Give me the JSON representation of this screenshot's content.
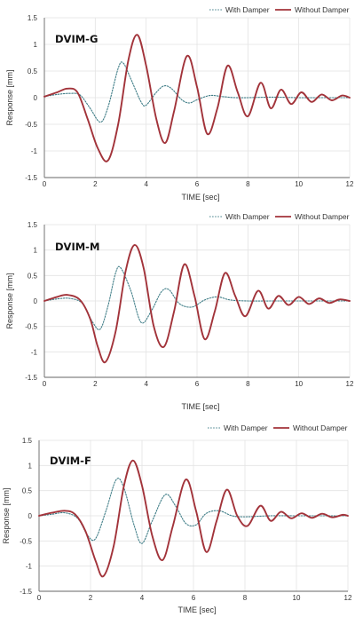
{
  "legend": {
    "with_damper": "With Damper",
    "without_damper": "Without Damper"
  },
  "colors": {
    "with_damper": "#3f7d87",
    "without_damper": "#a2333a",
    "grid": "#e3e3e3",
    "axis": "#666666"
  },
  "chart_data": [
    {
      "type": "line",
      "title": "DVIM-G",
      "xlabel": "TIME [sec]",
      "ylabel": "Response [mm]",
      "xlim": [
        0,
        12
      ],
      "ylim": [
        -1.5,
        1.5
      ],
      "xticks": [
        "0",
        "2",
        "4",
        "6",
        "8",
        "10",
        "12"
      ],
      "yticks": [
        "1.5",
        "1",
        "0.5",
        "0",
        "-0.5",
        "-1",
        "-1.5"
      ],
      "grid": true,
      "legend_position": "top-right",
      "series": [
        {
          "name": "With Damper",
          "style": "dotted",
          "points": [
            [
              0,
              0.02
            ],
            [
              0.5,
              0.06
            ],
            [
              1,
              0.08
            ],
            [
              1.4,
              0.05
            ],
            [
              1.8,
              -0.2
            ],
            [
              2.2,
              -0.46
            ],
            [
              2.5,
              -0.18
            ],
            [
              2.9,
              0.55
            ],
            [
              3.1,
              0.65
            ],
            [
              3.4,
              0.35
            ],
            [
              3.8,
              -0.08
            ],
            [
              4.0,
              -0.14
            ],
            [
              4.4,
              0.1
            ],
            [
              4.7,
              0.22
            ],
            [
              5.0,
              0.17
            ],
            [
              5.4,
              -0.04
            ],
            [
              5.7,
              -0.1
            ],
            [
              6.0,
              -0.04
            ],
            [
              6.5,
              0.04
            ],
            [
              7.0,
              0.02
            ],
            [
              7.5,
              0.0
            ],
            [
              8.0,
              0.0
            ],
            [
              9.0,
              0.01
            ],
            [
              10.0,
              0.0
            ],
            [
              11.0,
              0.0
            ],
            [
              12.0,
              0.0
            ]
          ]
        },
        {
          "name": "Without Damper",
          "style": "solid",
          "points": [
            [
              0,
              0.02
            ],
            [
              0.5,
              0.1
            ],
            [
              0.9,
              0.17
            ],
            [
              1.3,
              0.1
            ],
            [
              1.7,
              -0.4
            ],
            [
              2.1,
              -0.95
            ],
            [
              2.5,
              -1.18
            ],
            [
              2.9,
              -0.5
            ],
            [
              3.3,
              0.7
            ],
            [
              3.65,
              1.18
            ],
            [
              4.0,
              0.6
            ],
            [
              4.4,
              -0.4
            ],
            [
              4.75,
              -0.85
            ],
            [
              5.1,
              -0.25
            ],
            [
              5.6,
              0.78
            ],
            [
              6.0,
              0.2
            ],
            [
              6.4,
              -0.68
            ],
            [
              6.8,
              -0.2
            ],
            [
              7.2,
              0.6
            ],
            [
              7.6,
              0.1
            ],
            [
              8.0,
              -0.35
            ],
            [
              8.5,
              0.28
            ],
            [
              8.9,
              -0.2
            ],
            [
              9.3,
              0.15
            ],
            [
              9.7,
              -0.12
            ],
            [
              10.1,
              0.1
            ],
            [
              10.5,
              -0.08
            ],
            [
              10.9,
              0.06
            ],
            [
              11.3,
              -0.05
            ],
            [
              11.7,
              0.04
            ],
            [
              12.0,
              0.0
            ]
          ]
        }
      ]
    },
    {
      "type": "line",
      "title": "DVIM-M",
      "xlabel": "TIME [sec]",
      "ylabel": "Response [mm]",
      "xlim": [
        0,
        12
      ],
      "ylim": [
        -1.5,
        1.5
      ],
      "xticks": [
        "0",
        "2",
        "4",
        "6",
        "8",
        "10",
        "12"
      ],
      "yticks": [
        "1.5",
        "1",
        "0.5",
        "0",
        "-0.5",
        "-1",
        "-1.5"
      ],
      "grid": true,
      "legend_position": "top-right",
      "series": [
        {
          "name": "With Damper",
          "style": "dotted",
          "points": [
            [
              0,
              0.0
            ],
            [
              0.5,
              0.04
            ],
            [
              1.0,
              0.05
            ],
            [
              1.5,
              -0.05
            ],
            [
              1.9,
              -0.42
            ],
            [
              2.2,
              -0.55
            ],
            [
              2.5,
              -0.1
            ],
            [
              2.8,
              0.55
            ],
            [
              3.0,
              0.65
            ],
            [
              3.4,
              0.2
            ],
            [
              3.8,
              -0.42
            ],
            [
              4.2,
              -0.2
            ],
            [
              4.6,
              0.18
            ],
            [
              4.9,
              0.22
            ],
            [
              5.3,
              -0.05
            ],
            [
              5.8,
              -0.12
            ],
            [
              6.3,
              0.02
            ],
            [
              6.8,
              0.08
            ],
            [
              7.3,
              0.02
            ],
            [
              8.0,
              0.0
            ],
            [
              9.0,
              0.0
            ],
            [
              10.0,
              0.0
            ],
            [
              11.0,
              0.0
            ],
            [
              12.0,
              0.0
            ]
          ]
        },
        {
          "name": "Without Damper",
          "style": "solid",
          "points": [
            [
              0,
              0.0
            ],
            [
              0.5,
              0.08
            ],
            [
              0.9,
              0.12
            ],
            [
              1.4,
              0.02
            ],
            [
              1.8,
              -0.35
            ],
            [
              2.1,
              -0.9
            ],
            [
              2.4,
              -1.2
            ],
            [
              2.8,
              -0.6
            ],
            [
              3.2,
              0.6
            ],
            [
              3.55,
              1.1
            ],
            [
              3.9,
              0.65
            ],
            [
              4.3,
              -0.5
            ],
            [
              4.7,
              -0.9
            ],
            [
              5.1,
              -0.2
            ],
            [
              5.5,
              0.72
            ],
            [
              5.9,
              0.1
            ],
            [
              6.3,
              -0.75
            ],
            [
              6.7,
              -0.2
            ],
            [
              7.1,
              0.55
            ],
            [
              7.5,
              0.1
            ],
            [
              7.9,
              -0.3
            ],
            [
              8.4,
              0.2
            ],
            [
              8.8,
              -0.15
            ],
            [
              9.2,
              0.1
            ],
            [
              9.6,
              -0.08
            ],
            [
              10.0,
              0.08
            ],
            [
              10.4,
              -0.06
            ],
            [
              10.8,
              0.05
            ],
            [
              11.2,
              -0.04
            ],
            [
              11.6,
              0.03
            ],
            [
              12.0,
              0.0
            ]
          ]
        }
      ]
    },
    {
      "type": "line",
      "title": "DVIM-F",
      "xlabel": "TIME [sec]",
      "ylabel": "Response [mm]",
      "xlim": [
        0,
        12
      ],
      "ylim": [
        -1.5,
        1.5
      ],
      "xticks": [
        "0",
        "2",
        "4",
        "6",
        "8",
        "10",
        "12"
      ],
      "yticks": [
        "1.5",
        "1",
        "0.5",
        "0",
        "-0.5",
        "-1",
        "-1.5"
      ],
      "grid": true,
      "legend_position": "top-right",
      "series": [
        {
          "name": "With Damper",
          "style": "dotted",
          "points": [
            [
              0,
              0.0
            ],
            [
              0.5,
              0.03
            ],
            [
              1.0,
              0.06
            ],
            [
              1.5,
              -0.05
            ],
            [
              1.9,
              -0.4
            ],
            [
              2.2,
              -0.45
            ],
            [
              2.6,
              0.1
            ],
            [
              3.0,
              0.72
            ],
            [
              3.3,
              0.55
            ],
            [
              3.7,
              -0.2
            ],
            [
              4.0,
              -0.55
            ],
            [
              4.4,
              -0.1
            ],
            [
              4.9,
              0.42
            ],
            [
              5.3,
              0.2
            ],
            [
              5.7,
              -0.15
            ],
            [
              6.1,
              -0.18
            ],
            [
              6.5,
              0.05
            ],
            [
              7.0,
              0.1
            ],
            [
              7.5,
              0.0
            ],
            [
              8.0,
              -0.02
            ],
            [
              9.0,
              0.0
            ],
            [
              10.0,
              0.0
            ],
            [
              11.0,
              0.0
            ],
            [
              12.0,
              0.0
            ]
          ]
        },
        {
          "name": "Without Damper",
          "style": "solid",
          "points": [
            [
              0,
              0.0
            ],
            [
              0.5,
              0.06
            ],
            [
              1.0,
              0.1
            ],
            [
              1.4,
              0.03
            ],
            [
              1.8,
              -0.3
            ],
            [
              2.2,
              -0.9
            ],
            [
              2.5,
              -1.2
            ],
            [
              2.9,
              -0.6
            ],
            [
              3.3,
              0.6
            ],
            [
              3.65,
              1.1
            ],
            [
              4.0,
              0.6
            ],
            [
              4.4,
              -0.4
            ],
            [
              4.8,
              -0.88
            ],
            [
              5.2,
              -0.2
            ],
            [
              5.7,
              0.72
            ],
            [
              6.1,
              0.1
            ],
            [
              6.5,
              -0.72
            ],
            [
              6.9,
              -0.1
            ],
            [
              7.3,
              0.52
            ],
            [
              7.7,
              0.0
            ],
            [
              8.1,
              -0.2
            ],
            [
              8.6,
              0.2
            ],
            [
              9.0,
              -0.1
            ],
            [
              9.4,
              0.08
            ],
            [
              9.8,
              -0.05
            ],
            [
              10.2,
              0.05
            ],
            [
              10.6,
              -0.04
            ],
            [
              11.0,
              0.04
            ],
            [
              11.4,
              -0.03
            ],
            [
              11.8,
              0.02
            ],
            [
              12.0,
              0.0
            ]
          ]
        }
      ]
    }
  ]
}
